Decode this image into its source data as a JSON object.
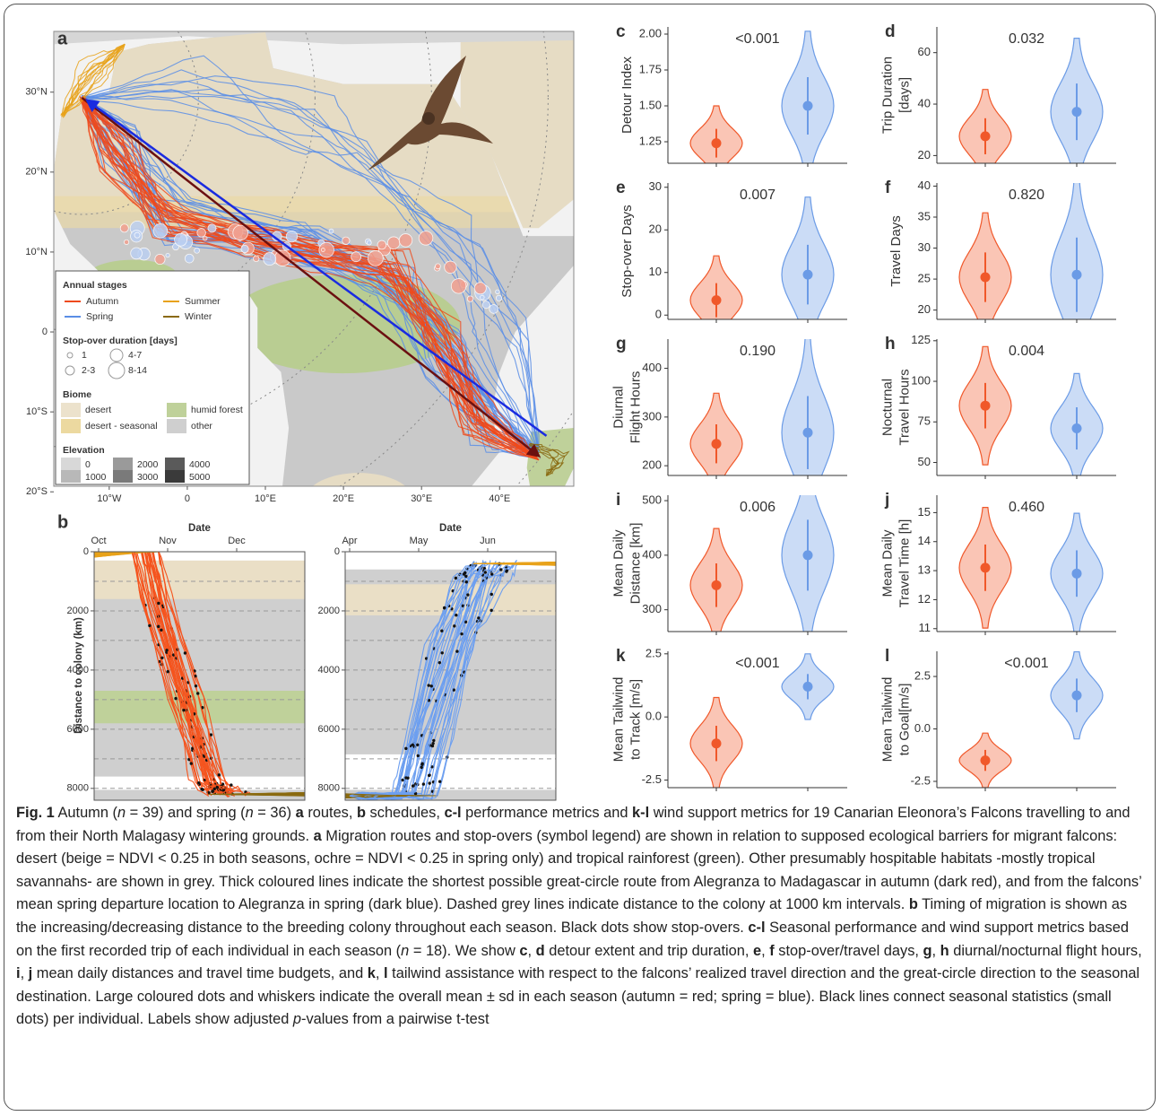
{
  "map": {
    "label": "a",
    "xlim": [
      -17.1,
      49.5
    ],
    "ylim": [
      -19.3,
      37.6
    ],
    "xticks": [
      {
        "value": -10,
        "label": "10°W"
      },
      0,
      {
        "value": 10,
        "label": "10°E"
      },
      {
        "value": 20,
        "label": "20°E"
      },
      {
        "value": 30,
        "label": "30°E"
      },
      {
        "value": 40,
        "label": "40°E"
      }
    ],
    "yticks": [
      {
        "value": 30,
        "label": "30°N"
      },
      {
        "value": 20,
        "label": "20°N"
      },
      {
        "value": 10,
        "label": "10°N"
      },
      0,
      {
        "value": -10,
        "label": "10°S"
      },
      {
        "value": -20,
        "label": "20°S"
      }
    ],
    "legend": {
      "stages_title": "Annual stages",
      "stages": [
        {
          "name": "Autumn",
          "color": "#ee4a1c"
        },
        {
          "name": "Summer",
          "color": "#e8a21a"
        },
        {
          "name": "Spring",
          "color": "#5a8ee6"
        },
        {
          "name": "Winter",
          "color": "#8a6a10"
        }
      ],
      "stopover_title": "Stop-over duration [days]",
      "stopover": [
        "1",
        "4-7",
        "2-3",
        "8-14"
      ],
      "biome_title": "Biome",
      "biome": [
        {
          "name": "desert",
          "color": "#ece2cc"
        },
        {
          "name": "humid forest",
          "color": "#bfd19a"
        },
        {
          "name": "desert - seasonal",
          "color": "#ecd9a0"
        },
        {
          "name": "other",
          "color": "#cfcfcf"
        }
      ],
      "elevation_title": "Elevation",
      "elevation": [
        "0",
        "2000",
        "4000",
        "1000",
        "3000",
        "5000"
      ]
    }
  },
  "schedule": {
    "label": "b",
    "ylabel": "Distance to colony (km)",
    "ylim": [
      0,
      8400
    ],
    "yticks": [
      0,
      2000,
      4000,
      6000,
      8000
    ],
    "panels": [
      {
        "xlabel": "Date",
        "months": [
          "Oct",
          "Nov",
          "Dec"
        ],
        "color": "#f5541e"
      },
      {
        "xlabel": "Date",
        "months": [
          "Apr",
          "May",
          "Jun"
        ],
        "color": "#6d9ff0"
      }
    ]
  },
  "metrics": {
    "season_colors": [
      "#f0582a",
      "#6b9be6"
    ],
    "panels": [
      {
        "letter": "c",
        "ylabel": [
          "Detour Index"
        ],
        "p": "<0.001",
        "ylim": [
          1.1,
          2.05
        ],
        "yticks": [
          {
            "value": 1.25,
            "label": "1.25"
          },
          {
            "value": 1.5,
            "label": "1.50"
          },
          {
            "value": 1.75,
            "label": "1.75"
          },
          {
            "value": 2.0,
            "label": "2.00"
          }
        ],
        "mean": [
          1.24,
          1.5
        ],
        "sd": [
          0.1,
          0.2
        ]
      },
      {
        "letter": "d",
        "ylabel": [
          "Trip Duration",
          "[days]"
        ],
        "p": "0.032",
        "ylim": [
          17,
          70
        ],
        "yticks": [
          20,
          40,
          60
        ],
        "mean": [
          27.5,
          37
        ],
        "sd": [
          7,
          11
        ]
      },
      {
        "letter": "e",
        "ylabel": [
          "Stop-over Days"
        ],
        "p": "0.007",
        "ylim": [
          -1,
          31
        ],
        "yticks": [
          0,
          10,
          20,
          30
        ],
        "mean": [
          3.5,
          9.5
        ],
        "sd": [
          4,
          7
        ]
      },
      {
        "letter": "f",
        "ylabel": [
          "Travel Days"
        ],
        "p": "0.820",
        "ylim": [
          18.5,
          40.5
        ],
        "yticks": [
          20,
          25,
          30,
          35,
          40
        ],
        "mean": [
          25.3,
          25.7
        ],
        "sd": [
          4,
          6
        ]
      },
      {
        "letter": "g",
        "ylabel": [
          "Diurnal",
          "Flight Hours"
        ],
        "p": "0.190",
        "ylim": [
          180,
          460
        ],
        "yticks": [
          200,
          300,
          400
        ],
        "mean": [
          245,
          268
        ],
        "sd": [
          40,
          75
        ]
      },
      {
        "letter": "h",
        "ylabel": [
          "Nocturnal",
          "Travel Hours"
        ],
        "p": "0.004",
        "ylim": [
          42,
          126
        ],
        "yticks": [
          50,
          75,
          100,
          125
        ],
        "mean": [
          85,
          71
        ],
        "sd": [
          14,
          13
        ]
      },
      {
        "letter": "i",
        "ylabel": [
          "Mean Daily",
          "Distance [km]"
        ],
        "p": "0.006",
        "ylim": [
          260,
          510
        ],
        "yticks": [
          300,
          400,
          500
        ],
        "mean": [
          345,
          400
        ],
        "sd": [
          40,
          65
        ]
      },
      {
        "letter": "j",
        "ylabel": [
          "Mean Daily",
          "Travel Time [h]"
        ],
        "p": "0.460",
        "ylim": [
          10.9,
          15.6
        ],
        "yticks": [
          11,
          12,
          13,
          14,
          15
        ],
        "mean": [
          13.1,
          12.9
        ],
        "sd": [
          0.8,
          0.8
        ]
      },
      {
        "letter": "k",
        "ylabel": [
          "Mean Tailwind",
          "to Track [m/s]"
        ],
        "p": "<0.001",
        "ylim": [
          -2.8,
          2.6
        ],
        "yticks": [
          -2.5,
          {
            "value": 0,
            "label": "0.0"
          },
          2.5
        ],
        "mean": [
          -1.05,
          1.2
        ],
        "sd": [
          0.7,
          0.5
        ]
      },
      {
        "letter": "l",
        "ylabel": [
          "Mean Tailwind",
          "to Goal[m/s]"
        ],
        "p": "<0.001",
        "ylim": [
          -2.8,
          3.7
        ],
        "yticks": [
          -2.5,
          {
            "value": 0,
            "label": "0.0"
          },
          2.5
        ],
        "mean": [
          -1.5,
          1.6
        ],
        "sd": [
          0.5,
          0.8
        ]
      }
    ]
  },
  "caption": [
    {
      "text": "Fig. 1",
      "style": "b"
    },
    {
      "text": " Autumn ("
    },
    {
      "text": "n",
      "style": "i"
    },
    {
      "text": " = 39) and spring ("
    },
    {
      "text": "n",
      "style": "i"
    },
    {
      "text": " = 36) "
    },
    {
      "text": "a",
      "style": "b"
    },
    {
      "text": " routes, "
    },
    {
      "text": "b",
      "style": "b"
    },
    {
      "text": " schedules, "
    },
    {
      "text": "c-l",
      "style": "b"
    },
    {
      "text": " performance metrics and "
    },
    {
      "text": "k-l",
      "style": "b"
    },
    {
      "text": " wind support metrics for 19 Canarian Eleonora’s Falcons travelling to and from their North Malagasy wintering grounds. "
    },
    {
      "text": "a",
      "style": "b"
    },
    {
      "text": " Migration routes and stop-overs (symbol legend) are shown in relation to supposed ecological barriers for migrant falcons: desert (beige = NDVI < 0.25 in both seasons, ochre = NDVI < 0.25 in spring only) and tropical rainforest (green). Other presumably hospitable habitats -mostly tropical savannahs- are shown in grey. Thick coloured lines indicate the shortest possible great-circle route from Alegranza to Madagascar in autumn (dark red), and from the falcons’ mean spring departure location to Alegranza in spring (dark blue). Dashed grey lines indicate distance to the colony at 1000 km intervals. "
    },
    {
      "text": "b",
      "style": "b"
    },
    {
      "text": " Timing of migration is shown as the increasing/decreasing distance to the breeding colony throughout each season. Black dots show stop-overs. "
    },
    {
      "text": "c-l",
      "style": "b"
    },
    {
      "text": " Seasonal performance and wind support metrics based on the first recorded trip of each individual in each season ("
    },
    {
      "text": "n",
      "style": "i"
    },
    {
      "text": " = 18). We show "
    },
    {
      "text": "c",
      "style": "b"
    },
    {
      "text": ", "
    },
    {
      "text": "d",
      "style": "b"
    },
    {
      "text": " detour extent and trip duration, "
    },
    {
      "text": "e",
      "style": "b"
    },
    {
      "text": ", "
    },
    {
      "text": "f",
      "style": "b"
    },
    {
      "text": " stop-over/travel days, "
    },
    {
      "text": "g",
      "style": "b"
    },
    {
      "text": ", "
    },
    {
      "text": "h",
      "style": "b"
    },
    {
      "text": " diurnal/nocturnal flight hours, "
    },
    {
      "text": "i",
      "style": "b"
    },
    {
      "text": ", "
    },
    {
      "text": "j",
      "style": "b"
    },
    {
      "text": " mean daily distances and travel time budgets, and "
    },
    {
      "text": "k",
      "style": "b"
    },
    {
      "text": ", "
    },
    {
      "text": "l",
      "style": "b"
    },
    {
      "text": " tailwind assistance with respect to the falcons’ realized travel direction and the great-circle direction to the seasonal destination. Large coloured dots and whiskers indicate the overall mean ± sd in each season (autumn = red; spring = blue). Black lines connect seasonal statistics (small dots) per individual. Labels show adjusted "
    },
    {
      "text": "p",
      "style": "i"
    },
    {
      "text": "-values from a pairwise t-test"
    }
  ]
}
